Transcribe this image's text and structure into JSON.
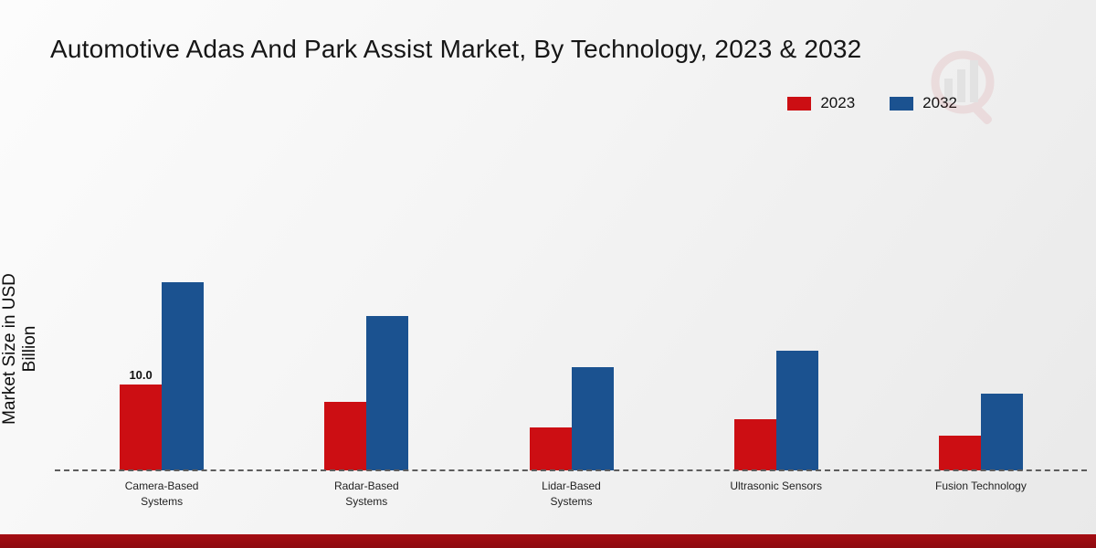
{
  "title": "Automotive Adas And Park Assist Market, By Technology, 2023 & 2032",
  "ylabel": "Market Size in USD Billion",
  "legend": [
    {
      "label": "2023",
      "color": "#cc0e13"
    },
    {
      "label": "2032",
      "color": "#1b5290"
    }
  ],
  "colors": {
    "series_2023": "#cc0e13",
    "series_2032": "#1b5290",
    "footer_bar": "#a50d12",
    "baseline": "#5d5d5d"
  },
  "chart_data": {
    "type": "bar",
    "title": "Automotive Adas And Park Assist Market, By Technology, 2023 & 2032",
    "xlabel": "",
    "ylabel": "Market Size in USD Billion",
    "categories": [
      "Camera-Based Systems",
      "Radar-Based Systems",
      "Lidar-Based Systems",
      "Ultrasonic Sensors",
      "Fusion Technology"
    ],
    "series": [
      {
        "name": "2023",
        "color": "#cc0e13",
        "values": [
          10.0,
          8.0,
          5.0,
          6.0,
          4.0
        ],
        "labels": [
          "10.0",
          null,
          null,
          null,
          null
        ]
      },
      {
        "name": "2032",
        "color": "#1b5290",
        "values": [
          22.0,
          18.0,
          12.0,
          14.0,
          9.0
        ],
        "labels": [
          null,
          null,
          null,
          null,
          null
        ]
      }
    ],
    "ylim": [
      0,
      24
    ],
    "grid": false,
    "legend_position": "top-right",
    "baseline_style": "dashed"
  }
}
